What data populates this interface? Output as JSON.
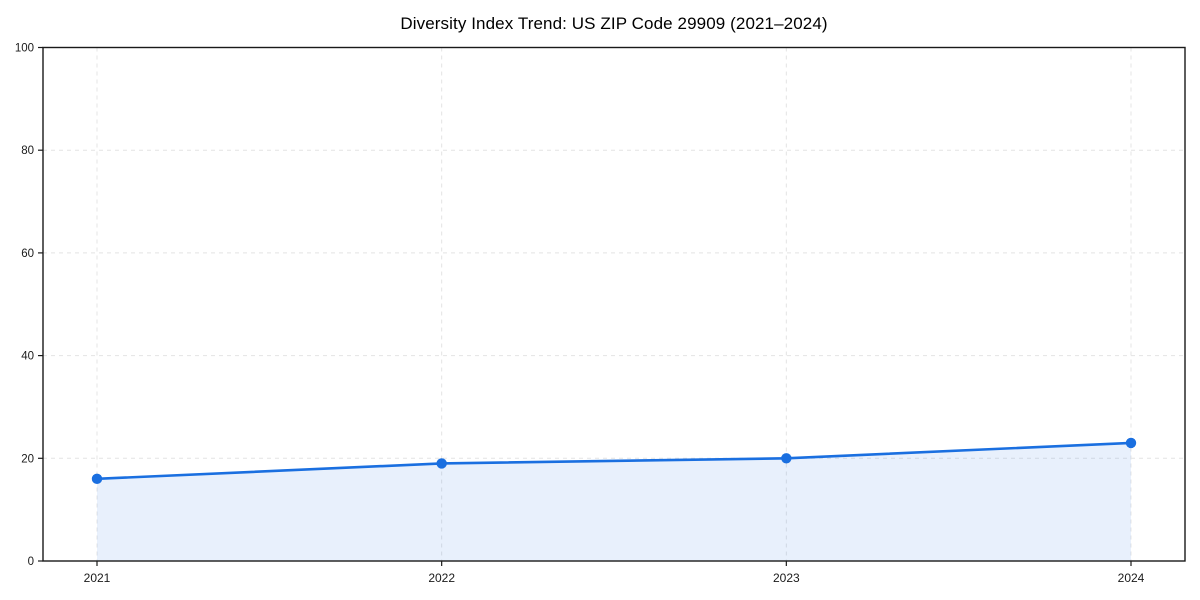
{
  "page": {
    "background": "#ffffff"
  },
  "chart_data": {
    "type": "line",
    "title": "Diversity Index Trend: US ZIP Code 29909 (2021–2024)",
    "categories": [
      "2021",
      "2022",
      "2023",
      "2024"
    ],
    "series": [
      {
        "name": "Diversity Index",
        "values": [
          16,
          19,
          20,
          23
        ]
      }
    ],
    "xlabel": "",
    "ylabel": "",
    "ylim": [
      0,
      100
    ],
    "yticks": [
      0,
      20,
      40,
      60,
      80,
      100
    ],
    "grid": true,
    "grid_style": "dashed",
    "legend_position": "none",
    "marker": "circle",
    "area_fill": true,
    "colors": {
      "line": "#1a6fe0",
      "marker": "#1a6fe0",
      "area_fill": "rgba(26,111,224,0.10)",
      "gridline": "#e4e4e4",
      "spine": "#1a1a1a",
      "tick_label": "#1a1a1a",
      "title": "#000000"
    }
  }
}
